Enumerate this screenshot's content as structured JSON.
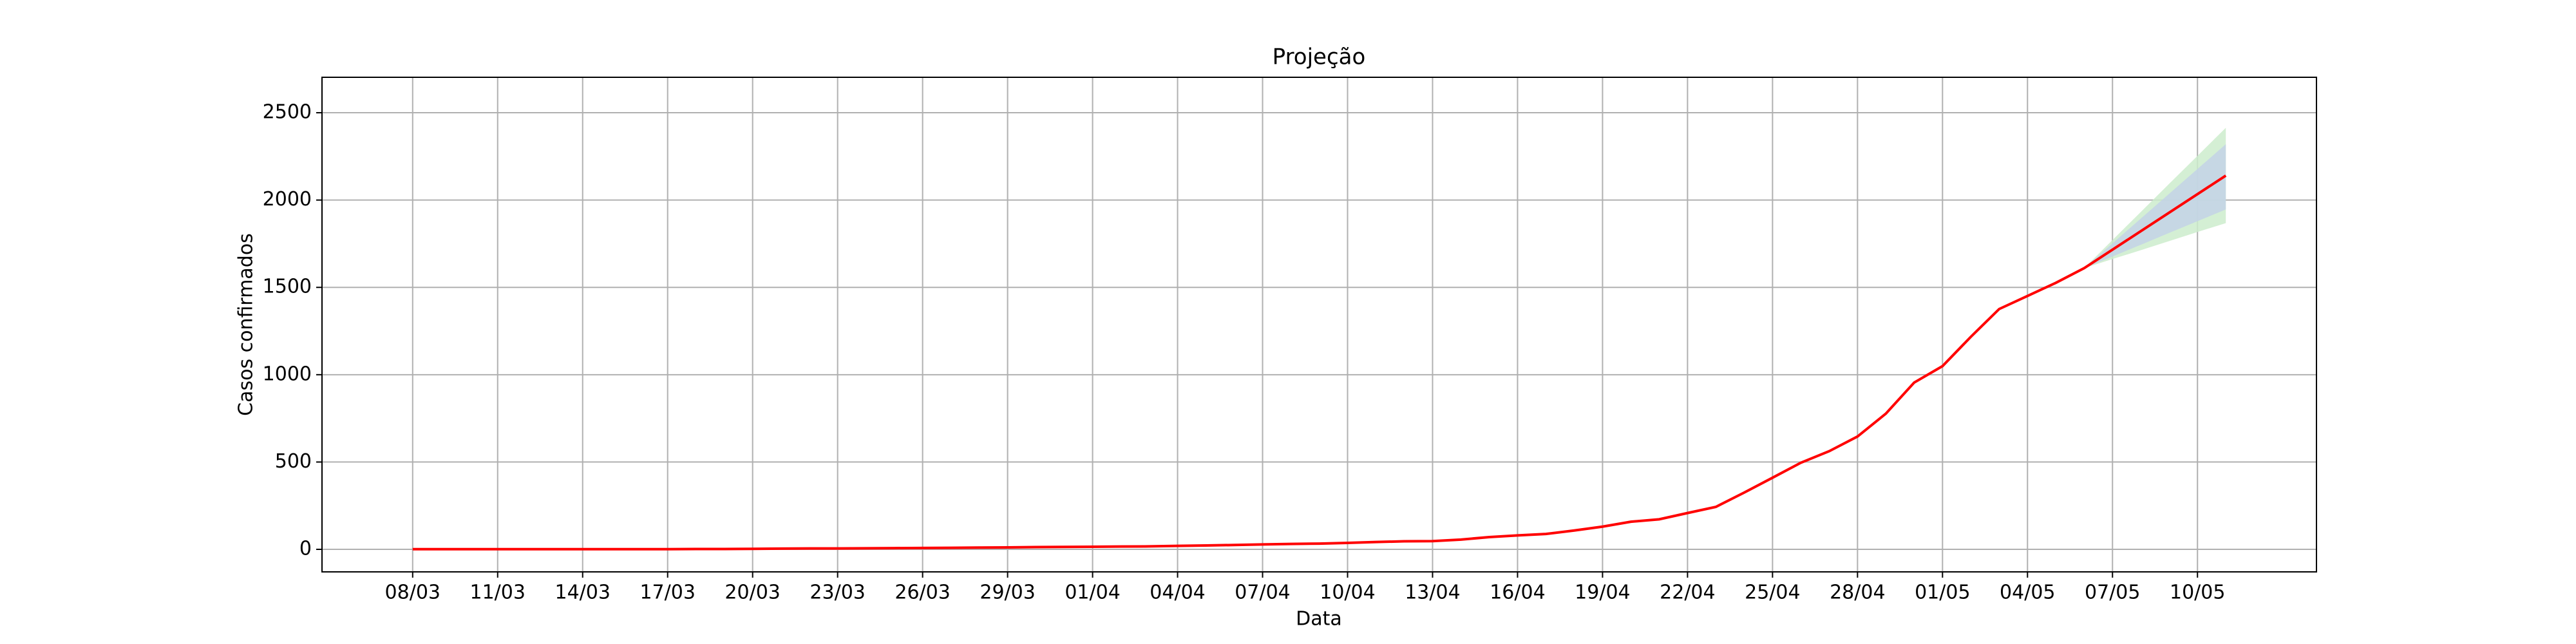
{
  "chart_data": {
    "type": "line",
    "title": "Projeção",
    "x_label": "Data",
    "y_label": "Casos confirmados",
    "categories": [
      "08/03",
      null,
      null,
      "11/03",
      null,
      null,
      "14/03",
      null,
      null,
      "17/03",
      null,
      null,
      "20/03",
      null,
      null,
      "23/03",
      null,
      null,
      "26/03",
      null,
      null,
      "29/03",
      null,
      null,
      "01/04",
      null,
      null,
      "04/04",
      null,
      null,
      "07/04",
      null,
      null,
      "10/04",
      null,
      null,
      "13/04",
      null,
      null,
      "16/04",
      null,
      null,
      "19/04",
      null,
      null,
      "22/04",
      null,
      null,
      "25/04",
      null,
      null,
      "28/04",
      null,
      null,
      "01/05",
      null,
      null,
      "04/05",
      null,
      null,
      "07/05",
      null,
      null,
      "10/05",
      null
    ],
    "values": [
      1,
      1,
      1,
      1,
      1,
      1,
      1,
      1,
      1,
      1,
      2,
      2,
      3,
      4,
      5,
      5,
      6,
      7,
      8,
      9,
      10,
      11,
      13,
      14,
      15,
      16,
      17,
      20,
      22,
      25,
      28,
      31,
      33,
      37,
      42,
      46,
      47,
      56,
      70,
      80,
      88,
      108,
      130,
      158,
      172,
      208,
      243,
      325,
      410,
      496,
      562,
      646,
      777,
      955,
      1049,
      1217,
      1376,
      1451,
      1526,
      1610,
      1716,
      1822,
      1928,
      2034,
      2140
    ],
    "color": "#ff0000",
    "bands": [
      {
        "color": "#cdeccd",
        "upper": [
          null,
          null,
          null,
          null,
          null,
          null,
          null,
          null,
          null,
          null,
          null,
          null,
          null,
          null,
          null,
          null,
          null,
          null,
          null,
          null,
          null,
          null,
          null,
          null,
          null,
          null,
          null,
          null,
          null,
          null,
          null,
          null,
          null,
          null,
          null,
          null,
          null,
          null,
          null,
          null,
          null,
          null,
          null,
          null,
          null,
          null,
          null,
          null,
          null,
          null,
          null,
          null,
          null,
          null,
          null,
          null,
          null,
          null,
          null,
          1610,
          1771,
          1932,
          2093,
          2253,
          2414
        ],
        "lower": [
          null,
          null,
          null,
          null,
          null,
          null,
          null,
          null,
          null,
          null,
          null,
          null,
          null,
          null,
          null,
          null,
          null,
          null,
          null,
          null,
          null,
          null,
          null,
          null,
          null,
          null,
          null,
          null,
          null,
          null,
          null,
          null,
          null,
          null,
          null,
          null,
          null,
          null,
          null,
          null,
          null,
          null,
          null,
          null,
          null,
          null,
          null,
          null,
          null,
          null,
          null,
          null,
          null,
          null,
          null,
          null,
          null,
          null,
          null,
          1610,
          1662,
          1713,
          1765,
          1817,
          1868
        ]
      },
      {
        "color": "#c3d2e6",
        "upper": [
          null,
          null,
          null,
          null,
          null,
          null,
          null,
          null,
          null,
          null,
          null,
          null,
          null,
          null,
          null,
          null,
          null,
          null,
          null,
          null,
          null,
          null,
          null,
          null,
          null,
          null,
          null,
          null,
          null,
          null,
          null,
          null,
          null,
          null,
          null,
          null,
          null,
          null,
          null,
          null,
          null,
          null,
          null,
          null,
          null,
          null,
          null,
          null,
          null,
          null,
          null,
          null,
          null,
          null,
          null,
          null,
          null,
          null,
          null,
          1610,
          1752,
          1894,
          2036,
          2178,
          2320
        ],
        "lower": [
          null,
          null,
          null,
          null,
          null,
          null,
          null,
          null,
          null,
          null,
          null,
          null,
          null,
          null,
          null,
          null,
          null,
          null,
          null,
          null,
          null,
          null,
          null,
          null,
          null,
          null,
          null,
          null,
          null,
          null,
          null,
          null,
          null,
          null,
          null,
          null,
          null,
          null,
          null,
          null,
          null,
          null,
          null,
          null,
          null,
          null,
          null,
          null,
          null,
          null,
          null,
          null,
          null,
          null,
          null,
          null,
          null,
          null,
          null,
          1610,
          1677,
          1744,
          1812,
          1879,
          1946
        ]
      }
    ],
    "ylim": [
      -129,
      2703
    ],
    "yticks": [
      0,
      500,
      1000,
      1500,
      2000,
      2500
    ],
    "grid": true
  }
}
